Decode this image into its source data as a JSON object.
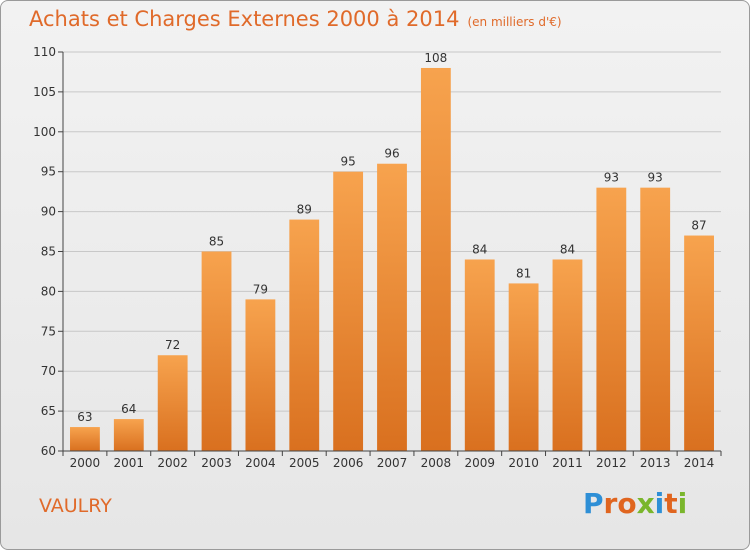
{
  "header": {
    "title": "Achats et Charges Externes 2000 à 2014",
    "subtitle": "(en milliers d'€)"
  },
  "footer": {
    "place": "VAULRY",
    "brand": "Proxiti"
  },
  "colors": {
    "accent": "#e06a2a",
    "bar_top": "#f7a34e",
    "bar_bottom": "#d9701f",
    "grid": "#c8c8c8",
    "logo_letters": [
      "#2e8fd6",
      "#e0651f",
      "#e0651f",
      "#7ab62c",
      "#2e8fd6",
      "#e0651f",
      "#7ab62c"
    ]
  },
  "chart_data": {
    "type": "bar",
    "title": "Achats et Charges Externes 2000 à 2014",
    "subtitle": "(en milliers d'€)",
    "xlabel": "",
    "ylabel": "",
    "categories": [
      "2000",
      "2001",
      "2002",
      "2003",
      "2004",
      "2005",
      "2006",
      "2007",
      "2008",
      "2009",
      "2010",
      "2011",
      "2012",
      "2013",
      "2014"
    ],
    "values": [
      63,
      64,
      72,
      85,
      79,
      89,
      95,
      96,
      108,
      84,
      81,
      84,
      93,
      93,
      87
    ],
    "ylim": [
      60,
      110
    ],
    "yticks": [
      60,
      65,
      70,
      75,
      80,
      85,
      90,
      95,
      100,
      105,
      110
    ],
    "grid": true,
    "data_labels": true
  }
}
